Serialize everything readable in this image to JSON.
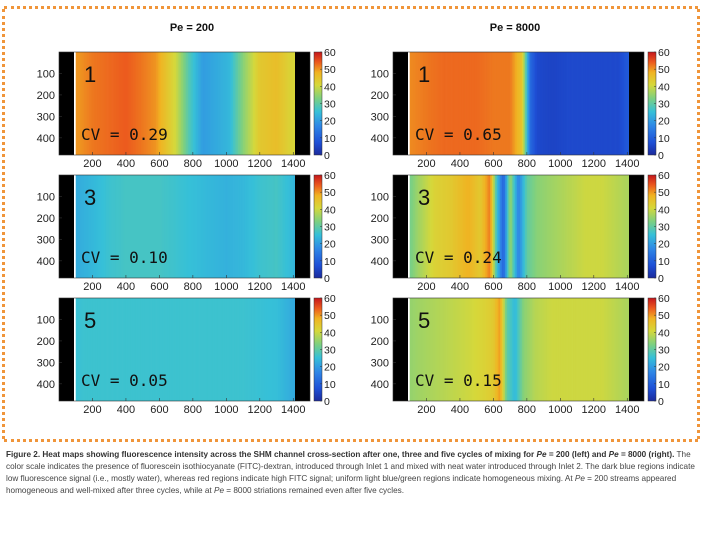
{
  "columns": [
    {
      "title": "Pe = 200"
    },
    {
      "title": "Pe = 8000"
    }
  ],
  "chart_data": [
    {
      "type": "heatmap",
      "column": "Pe = 200",
      "cycle_label": "1",
      "cv_label": "CV = 0.29",
      "x_ticks": [
        200,
        400,
        600,
        800,
        1000,
        1200,
        1400
      ],
      "y_ticks": [
        100,
        200,
        300,
        400
      ],
      "xlim": [
        0,
        1500
      ],
      "ylim": [
        0,
        480
      ],
      "colorbar_ticks": [
        0,
        10,
        20,
        30,
        40,
        50,
        60
      ],
      "colorbar_range": [
        0,
        60
      ],
      "profile_x": [
        50,
        120,
        200,
        300,
        400,
        500,
        580,
        640,
        700,
        780,
        860,
        940,
        1020,
        1100,
        1200,
        1300,
        1380,
        1450
      ],
      "profile_value": [
        50,
        50,
        52,
        53,
        54,
        52,
        50,
        45,
        40,
        28,
        20,
        22,
        24,
        34,
        44,
        46,
        42,
        40
      ]
    },
    {
      "type": "heatmap",
      "column": "Pe = 8000",
      "cycle_label": "1",
      "cv_label": "CV = 0.65",
      "x_ticks": [
        200,
        400,
        600,
        800,
        1000,
        1200,
        1400
      ],
      "y_ticks": [
        100,
        200,
        300,
        400
      ],
      "xlim": [
        0,
        1500
      ],
      "ylim": [
        0,
        480
      ],
      "colorbar_ticks": [
        0,
        10,
        20,
        30,
        40,
        50,
        60
      ],
      "colorbar_range": [
        0,
        60
      ],
      "profile_x": [
        50,
        120,
        200,
        300,
        400,
        500,
        600,
        700,
        770,
        820,
        860,
        950,
        1050,
        1150,
        1250,
        1350,
        1420,
        1450
      ],
      "profile_value": [
        50,
        51,
        52,
        53,
        53,
        53,
        52,
        52,
        45,
        12,
        6,
        5,
        6,
        6,
        6,
        6,
        10,
        14
      ]
    },
    {
      "type": "heatmap",
      "column": "Pe = 200",
      "cycle_label": "3",
      "cv_label": "CV = 0.10",
      "x_ticks": [
        200,
        400,
        600,
        800,
        1000,
        1200,
        1400
      ],
      "y_ticks": [
        100,
        200,
        300,
        400
      ],
      "xlim": [
        0,
        1500
      ],
      "ylim": [
        0,
        480
      ],
      "colorbar_ticks": [
        0,
        10,
        20,
        30,
        40,
        50,
        60
      ],
      "colorbar_range": [
        0,
        60
      ],
      "profile_x": [
        50,
        100,
        200,
        300,
        400,
        500,
        600,
        700,
        800,
        900,
        1000,
        1100,
        1200,
        1300,
        1400,
        1450
      ],
      "profile_value": [
        18,
        22,
        24,
        26,
        27,
        27,
        27,
        26,
        25,
        24,
        23,
        24,
        26,
        27,
        24,
        18
      ]
    },
    {
      "type": "heatmap",
      "column": "Pe = 8000",
      "cycle_label": "3",
      "cv_label": "CV = 0.24",
      "x_ticks": [
        200,
        400,
        600,
        800,
        1000,
        1200,
        1400
      ],
      "y_ticks": [
        100,
        200,
        300,
        400
      ],
      "xlim": [
        0,
        1500
      ],
      "ylim": [
        0,
        480
      ],
      "colorbar_ticks": [
        0,
        10,
        20,
        30,
        40,
        50,
        60
      ],
      "colorbar_range": [
        0,
        60
      ],
      "profile_x": [
        50,
        150,
        250,
        350,
        450,
        520,
        580,
        620,
        660,
        700,
        750,
        800,
        860,
        950,
        1050,
        1150,
        1250,
        1350,
        1450
      ],
      "profile_value": [
        28,
        36,
        42,
        44,
        48,
        44,
        52,
        26,
        10,
        36,
        16,
        30,
        34,
        36,
        38,
        40,
        40,
        38,
        36
      ]
    },
    {
      "type": "heatmap",
      "column": "Pe = 200",
      "cycle_label": "5",
      "cv_label": "CV = 0.05",
      "x_ticks": [
        200,
        400,
        600,
        800,
        1000,
        1200,
        1400
      ],
      "y_ticks": [
        100,
        200,
        300,
        400
      ],
      "xlim": [
        0,
        1500
      ],
      "ylim": [
        0,
        480
      ],
      "colorbar_ticks": [
        0,
        10,
        20,
        30,
        40,
        50,
        60
      ],
      "colorbar_range": [
        0,
        60
      ],
      "profile_x": [
        50,
        150,
        300,
        500,
        700,
        900,
        1100,
        1300,
        1400,
        1450
      ],
      "profile_value": [
        25,
        26,
        26,
        26,
        26,
        26,
        26,
        25,
        22,
        20
      ]
    },
    {
      "type": "heatmap",
      "column": "Pe = 8000",
      "cycle_label": "5",
      "cv_label": "CV = 0.15",
      "x_ticks": [
        200,
        400,
        600,
        800,
        1000,
        1200,
        1400
      ],
      "y_ticks": [
        100,
        200,
        300,
        400
      ],
      "xlim": [
        0,
        1500
      ],
      "ylim": [
        0,
        480
      ],
      "colorbar_ticks": [
        0,
        10,
        20,
        30,
        40,
        50,
        60
      ],
      "colorbar_range": [
        0,
        60
      ],
      "profile_x": [
        50,
        150,
        300,
        450,
        550,
        600,
        640,
        680,
        730,
        780,
        850,
        950,
        1050,
        1150,
        1250,
        1350,
        1450
      ],
      "profile_value": [
        34,
        36,
        38,
        40,
        42,
        44,
        50,
        30,
        24,
        34,
        38,
        40,
        40,
        40,
        40,
        38,
        36
      ]
    }
  ],
  "caption": {
    "bold_1": "Figure 2. Heat maps showing fluorescence intensity across the SHM channel cross-section after one, three and five cycles of mixing for ",
    "pe_1": "Pe",
    "bold_2": " = 200 (left) and ",
    "pe_2": "Pe",
    "bold_3": " = 8000 (right).",
    "text_1": " The color scale indicates the presence of fluorescein isothiocyanate (FITC)-dextran, introduced through Inlet 1 and mixed with neat water introduced through Inlet 2. The dark blue regions indicate low fluorescence signal (i.e., mostly water), whereas red regions indicate high FITC signal; uniform light blue/green regions indicate homogeneous mixing. At ",
    "pe_3": "Pe",
    "text_2": " = 200 streams appeared homogeneous and well-mixed after three cycles, while at ",
    "pe_4": "Pe",
    "text_3": " = 8000 striations remained even after five cycles."
  }
}
